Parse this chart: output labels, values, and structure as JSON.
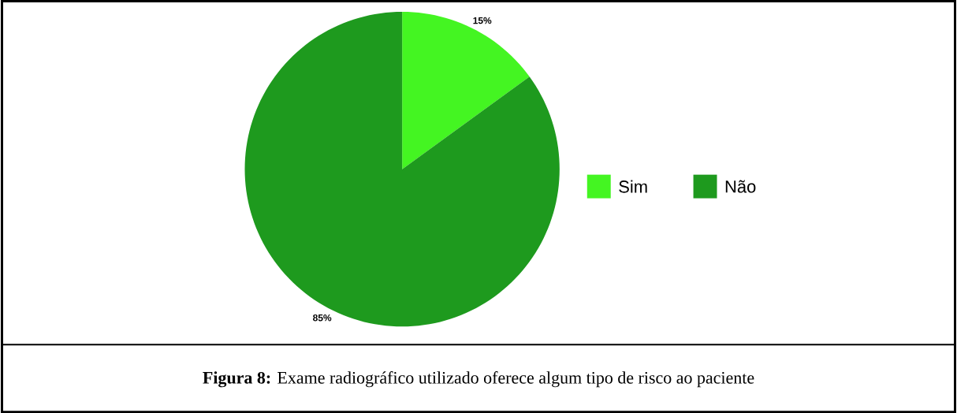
{
  "chart_data": {
    "type": "pie",
    "title": "**Figura 8:** Exame radiográfico utilizado oferece algum tipo de risco ao paciente",
    "categories": [
      "Sim",
      "Não"
    ],
    "values": [
      15,
      85
    ],
    "colors": [
      "#44f522",
      "#1e9a1e"
    ],
    "value_labels": [
      "15%",
      "85%"
    ],
    "legend": "right"
  }
}
